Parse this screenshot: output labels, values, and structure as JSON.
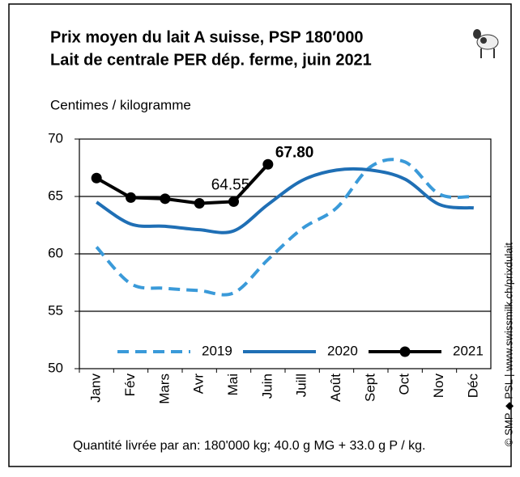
{
  "chart_data": {
    "type": "line",
    "title": [
      "Prix moyen du lait A suisse, PSP 180′000",
      "Lait de centrale PER dép. ferme, juin 2021"
    ],
    "y_label": "Centimes / kilogramme",
    "footnote": "Quantité livrée par an: 180'000 kg; 40.0 g MG + 33.0 g P / kg.",
    "source": "© SMP ◆ PSL | www.swissmilk.ch/prixdulait",
    "categories": [
      "Janv",
      "Fév",
      "Mars",
      "Avr",
      "Mai",
      "Juin",
      "Juill",
      "Août",
      "Sept",
      "Oct",
      "Nov",
      "Déc"
    ],
    "series": [
      {
        "name": "2019",
        "color": "#3a9ad9",
        "line_style": "dashed",
        "smooth": true,
        "values": [
          60.6,
          57.4,
          57.0,
          56.8,
          56.6,
          59.5,
          62.2,
          64.0,
          67.6,
          68.0,
          65.2,
          65.0
        ]
      },
      {
        "name": "2020",
        "color": "#1f6fb5",
        "line_style": "solid",
        "smooth": true,
        "values": [
          64.5,
          62.6,
          62.4,
          62.1,
          62.0,
          64.3,
          66.4,
          67.3,
          67.3,
          66.5,
          64.3,
          64.0
        ]
      },
      {
        "name": "2021",
        "color": "#000000",
        "line_style": "solid",
        "smooth": false,
        "marker": "circle",
        "values": [
          66.6,
          64.9,
          64.8,
          64.4,
          64.55,
          67.8,
          null,
          null,
          null,
          null,
          null,
          null
        ],
        "value_labels": [
          null,
          null,
          null,
          null,
          "64.55",
          "67.80",
          null,
          null,
          null,
          null,
          null,
          null
        ]
      }
    ],
    "ylim": [
      50,
      70
    ],
    "yticks": [
      50,
      55,
      60,
      65,
      70
    ],
    "grid": true,
    "legend": "bottom"
  }
}
